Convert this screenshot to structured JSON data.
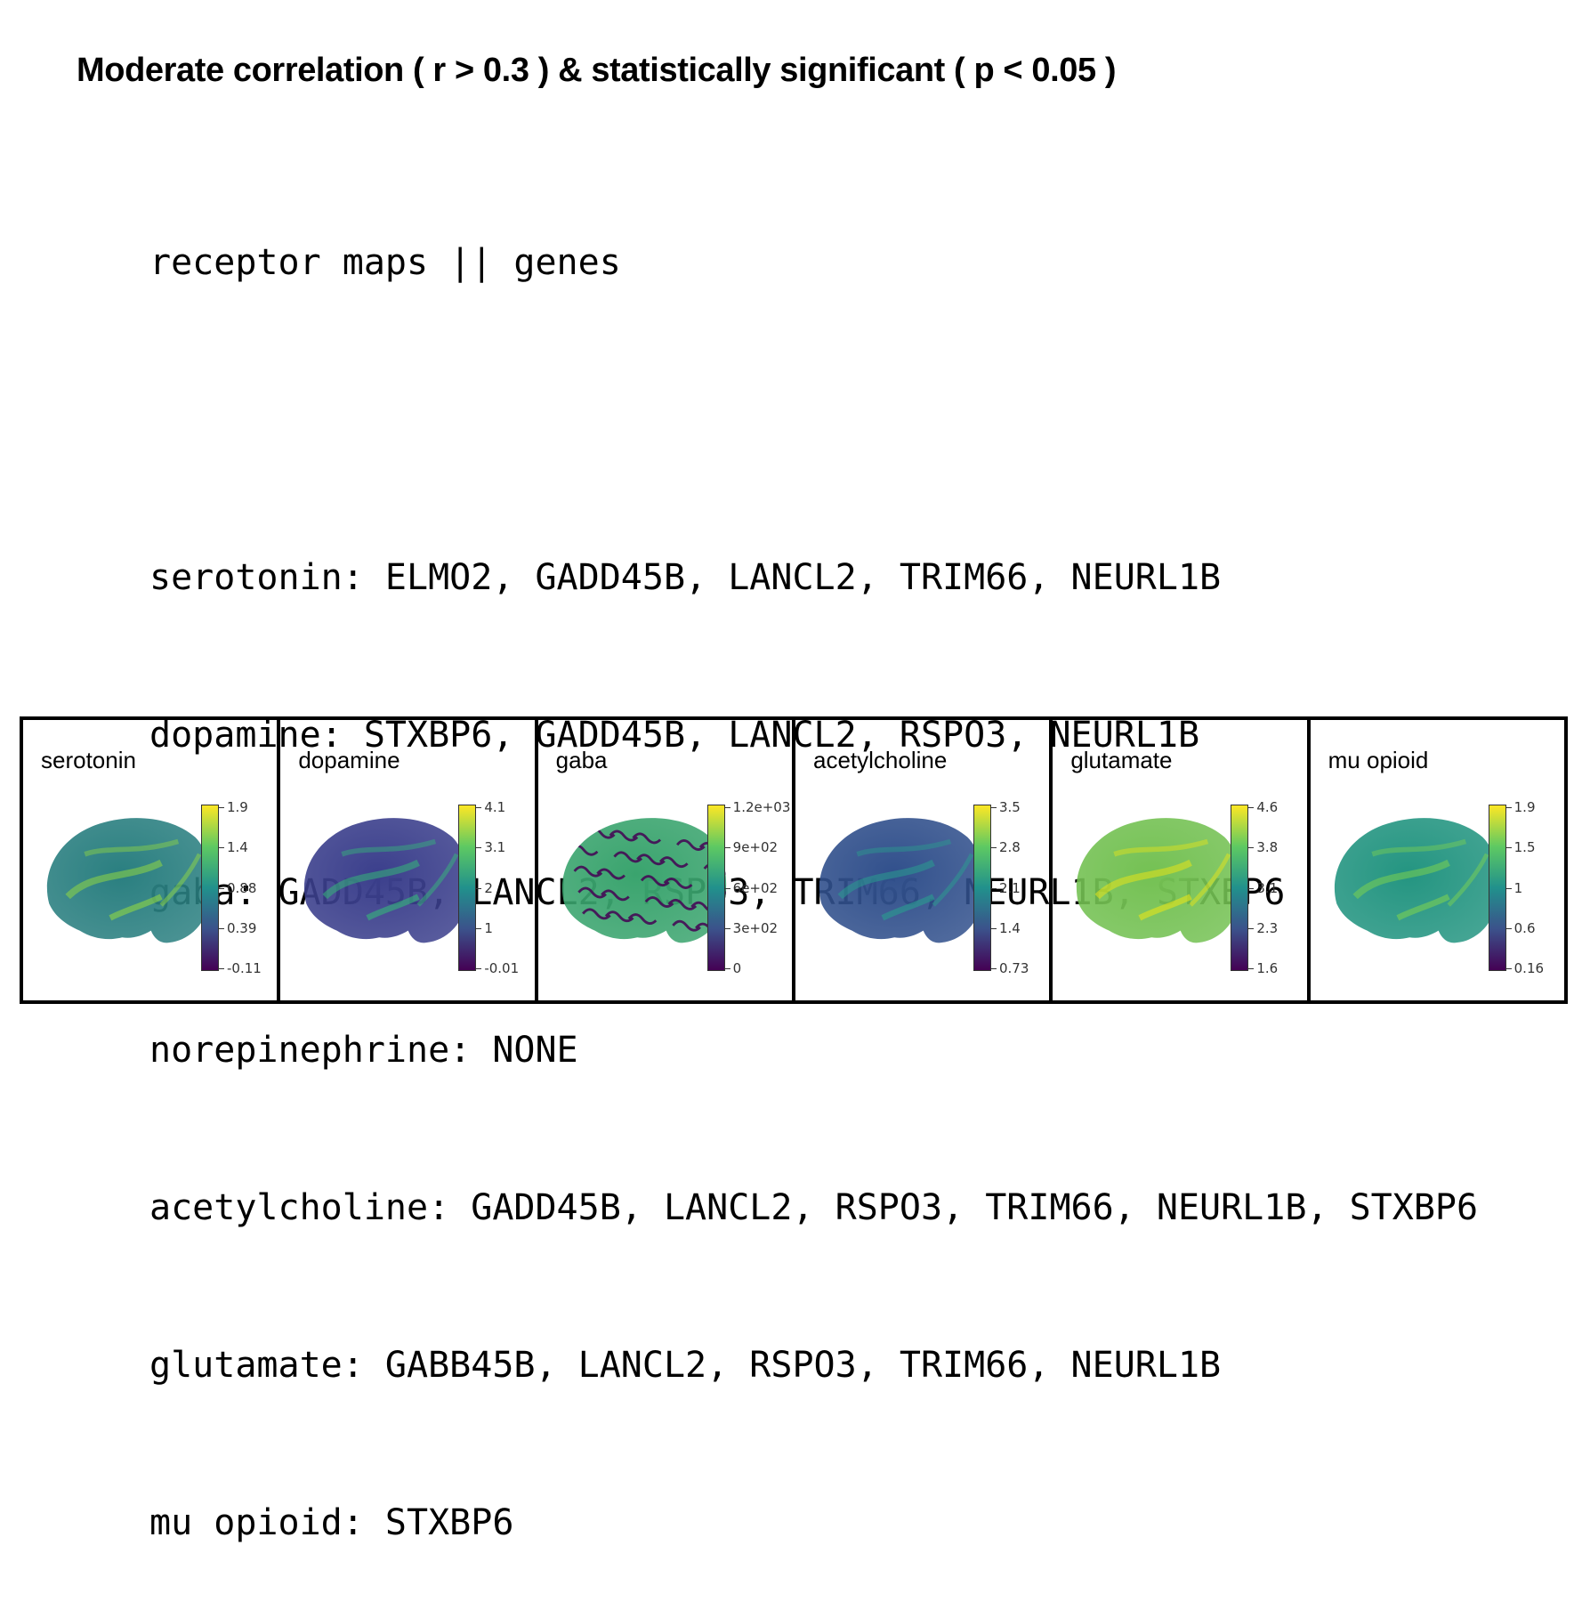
{
  "heading": "Moderate correlation ( r > 0.3 ) & statistically significant ( p < 0.05 )",
  "code": {
    "header": "receptor maps || genes",
    "lines": [
      "serotonin: ELMO2, GADD45B, LANCL2, TRIM66, NEURL1B",
      "dopamine: STXBP6, GADD45B, LANCL2, RSPO3, NEURL1B",
      "gaba: GADD45B, LANCL2, RSPO3, TRIM66, NEURL1B, STXBP6",
      "norepinephrine: NONE",
      "acetylcholine: GADD45B, LANCL2, RSPO3, TRIM66, NEURL1B, STXBP6",
      "glutamate: GABB45B, LANCL2, RSPO3, TRIM66, NEURL1B",
      "mu opioid: STXBP6"
    ]
  },
  "panels": [
    {
      "title": "serotonin",
      "ticks": [
        "1.9",
        "1.4",
        "0.88",
        "0.39",
        "-0.11"
      ],
      "base_color": "#2a7f80",
      "accent": "#90d743",
      "pattern": "smooth"
    },
    {
      "title": "dopamine",
      "ticks": [
        "4.1",
        "3.1",
        "2",
        "1",
        "-0.01"
      ],
      "base_color": "#3b3f8c",
      "accent": "#35b779",
      "pattern": "smooth"
    },
    {
      "title": "gaba",
      "ticks": [
        "1.2e+03",
        "9e+02",
        "6e+02",
        "3e+02",
        "0"
      ],
      "base_color": "#3aa46e",
      "accent": "#440154",
      "pattern": "speckled"
    },
    {
      "title": "acetylcholine",
      "ticks": [
        "3.5",
        "2.8",
        "2.1",
        "1.4",
        "0.73"
      ],
      "base_color": "#31508c",
      "accent": "#2a9d8f",
      "pattern": "smooth"
    },
    {
      "title": "glutamate",
      "ticks": [
        "4.6",
        "3.8",
        "3.1",
        "2.3",
        "1.6"
      ],
      "base_color": "#74c153",
      "accent": "#e6e419",
      "pattern": "smooth"
    },
    {
      "title": "mu opioid",
      "ticks": [
        "1.9",
        "1.5",
        "1",
        "0.6",
        "0.16"
      ],
      "base_color": "#249581",
      "accent": "#7ad151",
      "pattern": "smooth"
    }
  ],
  "colors": {
    "viridis_low": "#440154",
    "viridis_high": "#fde725"
  }
}
